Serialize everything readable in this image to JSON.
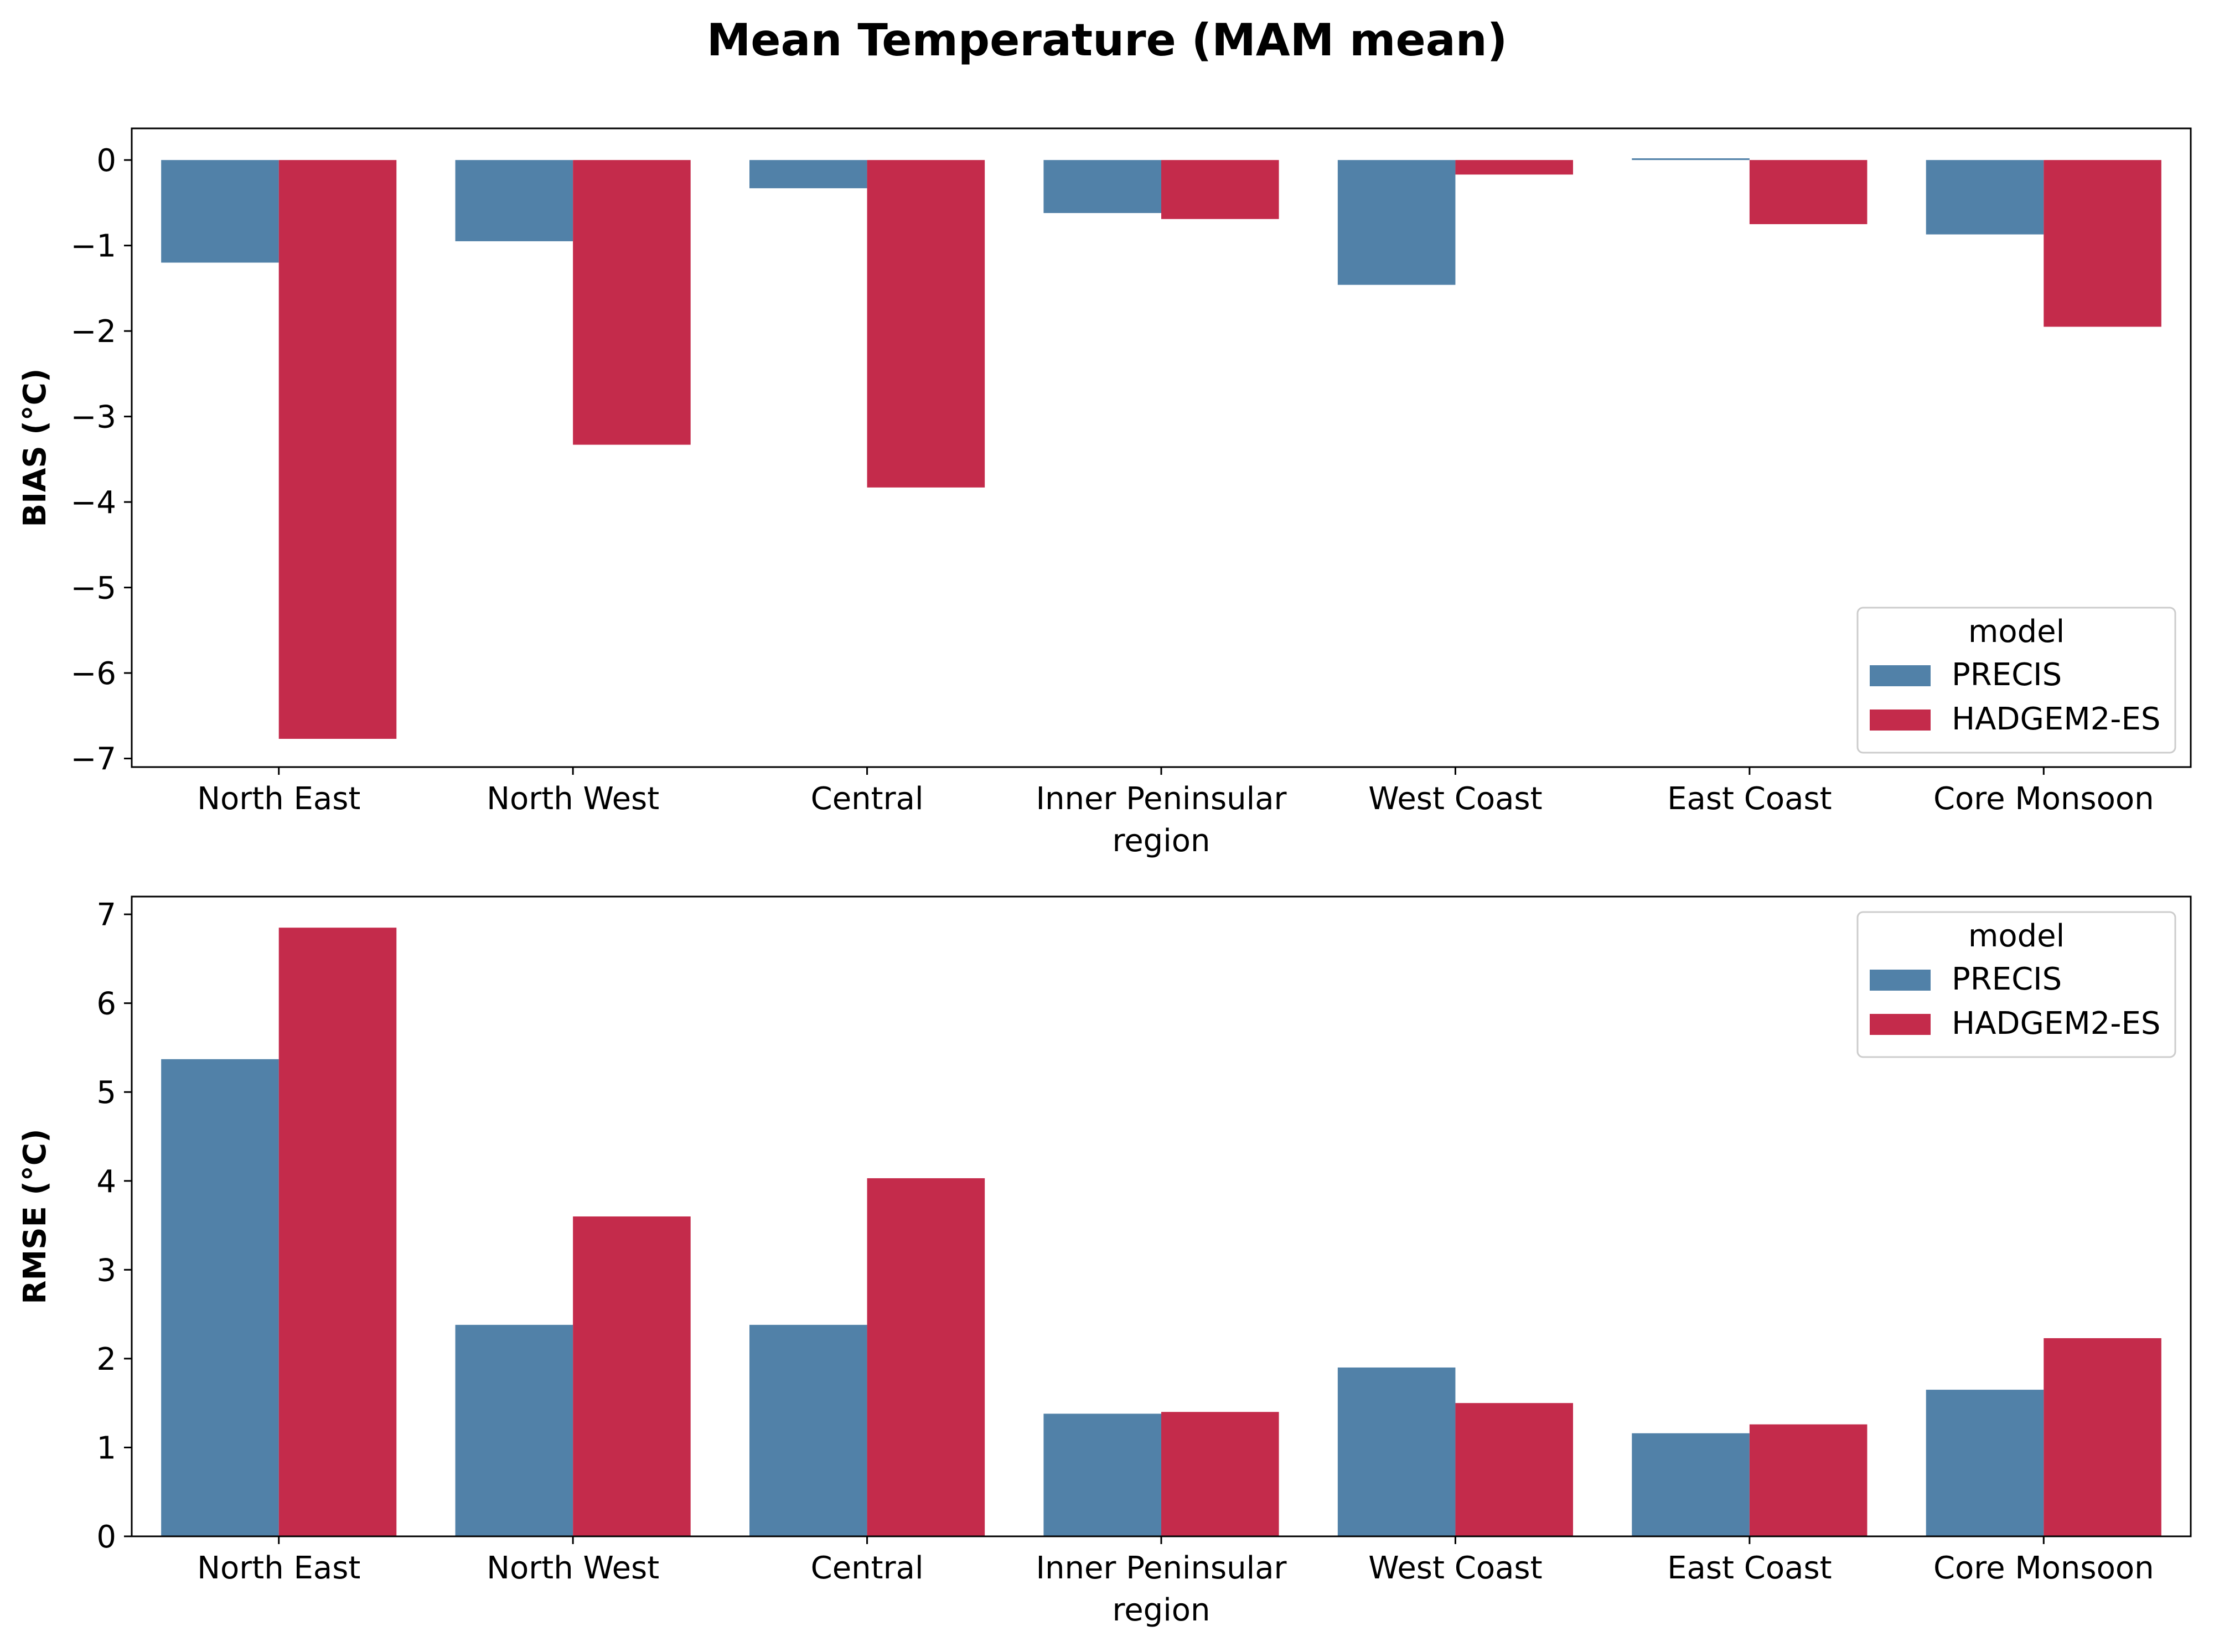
{
  "figure": {
    "title": "Mean Temperature (MAM mean)"
  },
  "colors": {
    "PRECIS": "#5181a8",
    "HADGEM2-ES": "#c42b4b",
    "axis": "#000000",
    "legend_border": "#cccccc"
  },
  "chart_data": [
    {
      "type": "bar",
      "categories": [
        "North East",
        "North West",
        "Central",
        "Inner Peninsular",
        "West Coast",
        "East Coast",
        "Core Monsoon"
      ],
      "series": [
        {
          "name": "PRECIS",
          "values": [
            -1.2,
            -0.95,
            -0.33,
            -0.62,
            -1.46,
            0.02,
            -0.87
          ]
        },
        {
          "name": "HADGEM2-ES",
          "values": [
            -6.77,
            -3.33,
            -3.83,
            -0.69,
            -0.17,
            -0.75,
            -1.95
          ]
        }
      ],
      "title": "",
      "xlabel": "region",
      "ylabel": "BIAS ($^\\circ$C)",
      "ylabel_display": "BIAS (°C)",
      "ylim": [
        -7.1,
        0.37
      ],
      "yticks": [
        0,
        -1,
        -2,
        -3,
        -4,
        -5,
        -6,
        -7
      ],
      "ytick_labels": [
        "0",
        "−1",
        "−2",
        "−3",
        "−4",
        "−5",
        "−6",
        "−7"
      ],
      "grid": false,
      "legend": {
        "title": "model",
        "placement": "lower-right",
        "entries": [
          "PRECIS",
          "HADGEM2-ES"
        ]
      }
    },
    {
      "type": "bar",
      "categories": [
        "North East",
        "North West",
        "Central",
        "Inner Peninsular",
        "West Coast",
        "East Coast",
        "Core Monsoon"
      ],
      "series": [
        {
          "name": "PRECIS",
          "values": [
            5.37,
            2.38,
            2.38,
            1.38,
            1.9,
            1.16,
            1.65
          ]
        },
        {
          "name": "HADGEM2-ES",
          "values": [
            6.85,
            3.6,
            4.03,
            1.4,
            1.5,
            1.26,
            2.23
          ]
        }
      ],
      "title": "",
      "xlabel": "region",
      "ylabel_display": "RMSE (°C)",
      "ylim": [
        0,
        7.2
      ],
      "yticks": [
        0,
        1,
        2,
        3,
        4,
        5,
        6,
        7
      ],
      "ytick_labels": [
        "0",
        "1",
        "2",
        "3",
        "4",
        "5",
        "6",
        "7"
      ],
      "grid": false,
      "legend": {
        "title": "model",
        "placement": "upper-right",
        "entries": [
          "PRECIS",
          "HADGEM2-ES"
        ]
      }
    }
  ]
}
